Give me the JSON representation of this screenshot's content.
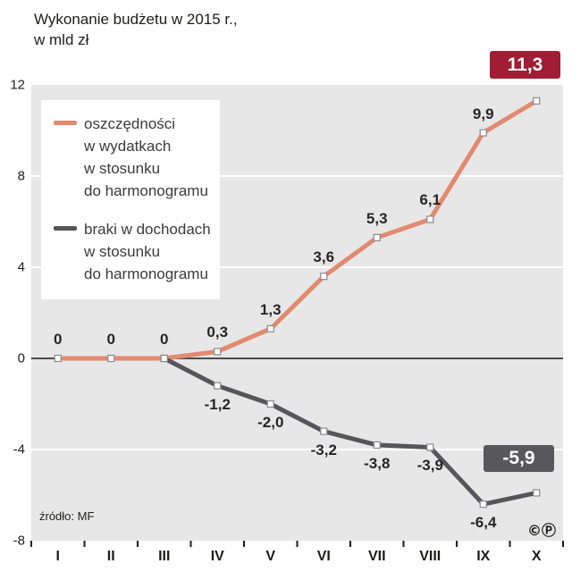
{
  "title": {
    "line1": "Wykonanie budżetu w 2015 r.,",
    "line2": "w mld zł"
  },
  "source": "źródło: MF",
  "copyright": "©Ⓟ",
  "colors": {
    "panel": "#e7e7e7",
    "gridline": "#ffffff",
    "zero_line": "#4d4d4d",
    "savings": "#e28a70",
    "shortfall": "#56565a",
    "badge_red": "#a11d33",
    "badge_gray": "#58585b"
  },
  "chart_data": {
    "type": "line",
    "title": "Wykonanie budżetu w 2015 r., w mld zł",
    "categories": [
      "I",
      "II",
      "III",
      "IV",
      "V",
      "VI",
      "VII",
      "VIII",
      "IX",
      "X"
    ],
    "series": [
      {
        "name": "oszczędności w wydatkach w stosunku do harmonogramu",
        "color": "#e28a70",
        "values": [
          0,
          0,
          0,
          0.3,
          1.3,
          3.6,
          5.3,
          6.1,
          9.9,
          11.3
        ],
        "labels": [
          "0",
          "0",
          "0",
          "0,3",
          "1,3",
          "3,6",
          "5,3",
          "6,1",
          "9,9",
          ""
        ],
        "label_position": "above"
      },
      {
        "name": "braki w dochodach w stosunku do harmonogramu",
        "color": "#56565a",
        "values": [
          null,
          null,
          0,
          -1.2,
          -2.0,
          -3.2,
          -3.8,
          -3.9,
          -6.4,
          -5.9
        ],
        "labels": [
          "",
          "",
          "",
          "-1,2",
          "-2,0",
          "-3,2",
          "-3,8",
          "-3,9",
          "-6,4",
          ""
        ],
        "label_position": "below"
      }
    ],
    "ylim": [
      -8,
      12
    ],
    "yticks": [
      12,
      8,
      4,
      0,
      -4,
      -8
    ],
    "grid": true,
    "legend_position": "top-left-inside",
    "legend": [
      {
        "color": "#e28a70",
        "lines": [
          "oszczędności",
          "w wydatkach",
          "w stosunku",
          "do harmonogramu"
        ]
      },
      {
        "color": "#56565a",
        "lines": [
          "braki w dochodach",
          "w stosunku",
          "do harmonogramu"
        ]
      }
    ],
    "badges": [
      {
        "text": "11,3",
        "color": "#a11d33",
        "series": 0,
        "category": "X"
      },
      {
        "text": "-5,9",
        "color": "#58585b",
        "series": 1,
        "category": "X"
      }
    ]
  }
}
